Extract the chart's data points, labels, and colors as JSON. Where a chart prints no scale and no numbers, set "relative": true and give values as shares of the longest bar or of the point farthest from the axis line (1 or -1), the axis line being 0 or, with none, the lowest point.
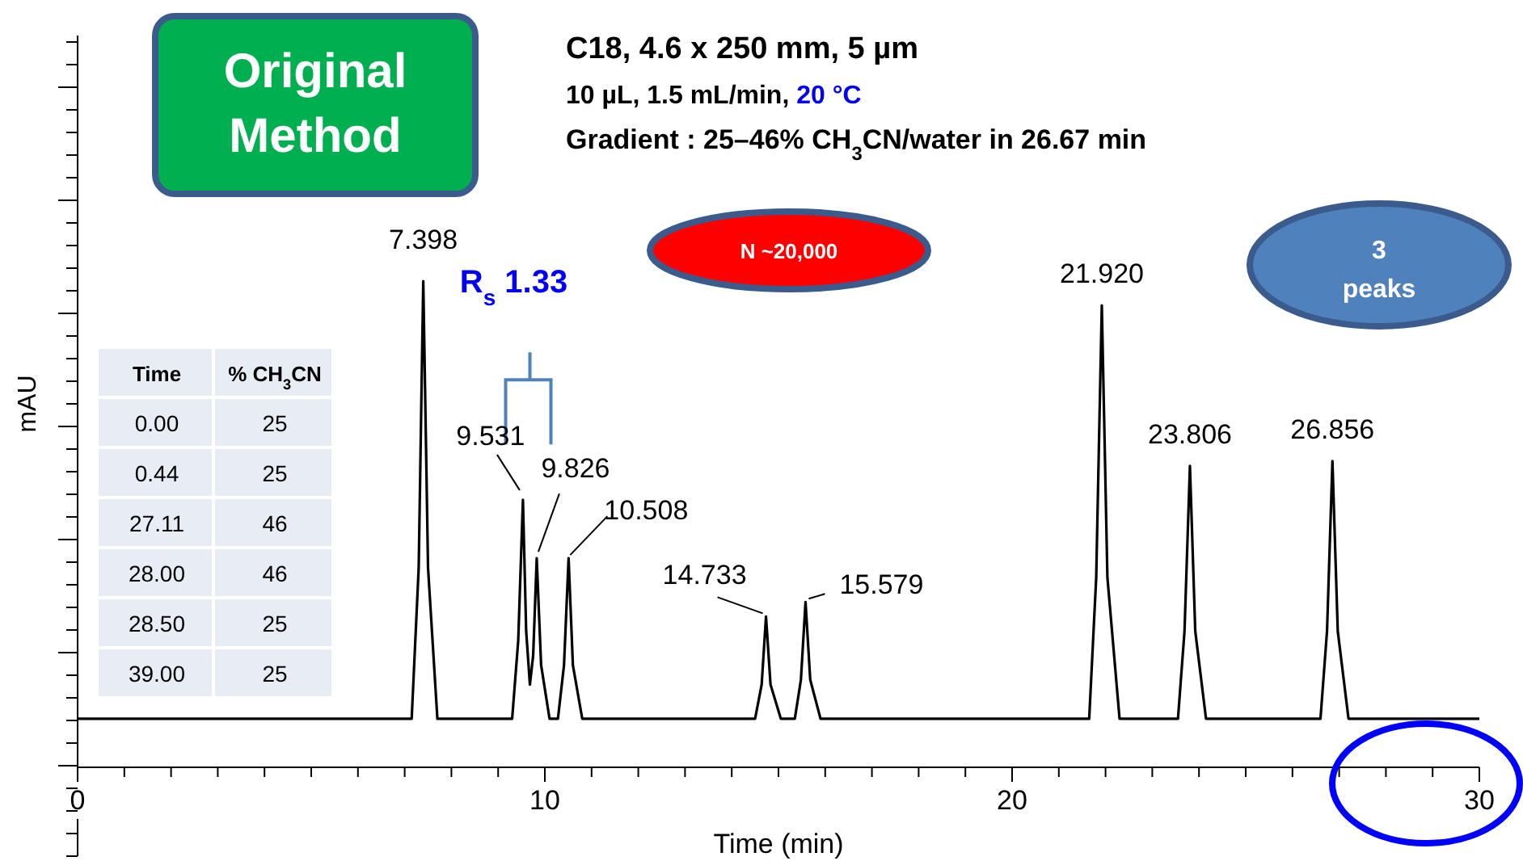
{
  "chart_data": [
    {
      "type": "line",
      "relative": true,
      "title": "C18, 4.6 x 250 mm, 5 µm",
      "subtitle": "10 µL, 1.5 mL/min, 20 °C",
      "xlabel": "Time (min)",
      "ylabel": "mAU",
      "xlim": [
        0,
        30
      ],
      "xticks": [
        0,
        10,
        20,
        30
      ],
      "marker": "none",
      "line_style": "solid",
      "series": [
        {
          "color": "#000000",
          "x": [
            0,
            7.15,
            7.3,
            7.398,
            7.5,
            7.7,
            9.3,
            9.43,
            9.531,
            9.6,
            9.68,
            9.75,
            9.826,
            9.92,
            10.1,
            10.28,
            10.41,
            10.508,
            10.6,
            10.8,
            14.5,
            14.64,
            14.733,
            14.83,
            15.05,
            15.35,
            15.48,
            15.579,
            15.68,
            15.9,
            21.65,
            21.8,
            21.92,
            22.04,
            22.3,
            23.55,
            23.69,
            23.806,
            23.92,
            24.15,
            26.6,
            26.74,
            26.856,
            26.97,
            27.2,
            30
          ],
          "values": [
            0.1,
            0.1,
            0.41,
            1,
            0.41,
            0.1,
            0.1,
            0.26,
            0.55,
            0.28,
            0.17,
            0.23,
            0.43,
            0.21,
            0.1,
            0.1,
            0.21,
            0.43,
            0.21,
            0.1,
            0.1,
            0.17,
            0.31,
            0.17,
            0.1,
            0.1,
            0.18,
            0.34,
            0.18,
            0.1,
            0.1,
            0.39,
            0.95,
            0.39,
            0.1,
            0.1,
            0.28,
            0.62,
            0.28,
            0.1,
            0.1,
            0.28,
            0.63,
            0.28,
            0.1,
            0.1
          ]
        }
      ],
      "annotations": [
        "Gradient :  25–46% CH$_{3}$CN/water in 26.67 min",
        "Original Method",
        "N ~20,000",
        "3 peaks",
        "R$_{s}$ 1.33",
        {
          "text": "7.398",
          "x": 7.398,
          "y": 1
        },
        {
          "text": "9.531",
          "x": 9.531,
          "y": 0.55
        },
        {
          "text": "9.826",
          "x": 9.826,
          "y": 0.43
        },
        {
          "text": "10.508",
          "x": 10.508,
          "y": 0.43
        },
        {
          "text": "14.733",
          "x": 14.733,
          "y": 0.31
        },
        {
          "text": "15.579",
          "x": 15.579,
          "y": 0.34
        },
        {
          "text": "21.920",
          "x": 21.92,
          "y": 0.95
        },
        {
          "text": "23.806",
          "x": 23.806,
          "y": 0.62
        },
        {
          "text": "26.856",
          "x": 26.856,
          "y": 0.63
        }
      ]
    },
    {
      "type": "other",
      "annotations": [
        "Time",
        "% CH$_{3}$CN",
        "0.00",
        "25",
        "0.44",
        "25",
        "27.11",
        "46",
        "28.00",
        "46",
        "28.50",
        "25",
        "39.00",
        "25"
      ]
    }
  ]
}
